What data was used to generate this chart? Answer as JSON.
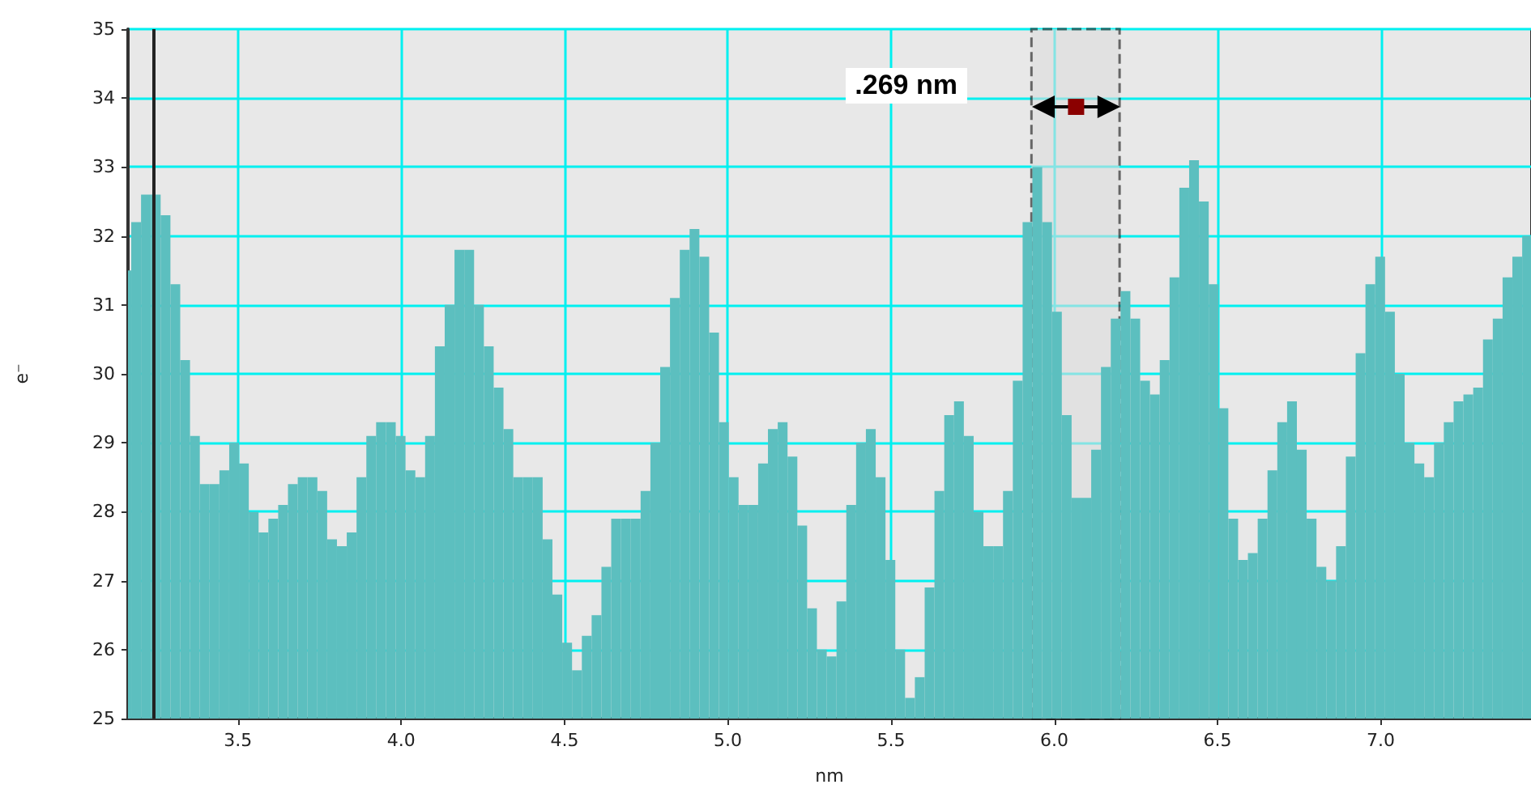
{
  "chart_data": {
    "type": "histogram",
    "xlabel": "nm",
    "ylabel": "e⁻",
    "color": "#5cbfbf",
    "bins": [
      3.163,
      3.173,
      3.203,
      3.233,
      3.263,
      3.293,
      3.323,
      3.353,
      3.383,
      3.413,
      3.443,
      3.473,
      3.503,
      3.533,
      3.563,
      3.593,
      3.623,
      3.653,
      3.683,
      3.713,
      3.743,
      3.773,
      3.803,
      3.833,
      3.863,
      3.893,
      3.923,
      3.953,
      3.983,
      4.013,
      4.043,
      4.073,
      4.103,
      4.133,
      4.163,
      4.193,
      4.223,
      4.253,
      4.283,
      4.313,
      4.343,
      4.373,
      4.403,
      4.433,
      4.463,
      4.493,
      4.523,
      4.553,
      4.583,
      4.613,
      4.643,
      4.673,
      4.703,
      4.733,
      4.763,
      4.793,
      4.823,
      4.853,
      4.883,
      4.913,
      4.943,
      4.973,
      5.003,
      5.033,
      5.063,
      5.093,
      5.123,
      5.153,
      5.183,
      5.213,
      5.243,
      5.273,
      5.303,
      5.333,
      5.363,
      5.393,
      5.423,
      5.453,
      5.483,
      5.513,
      5.543,
      5.573,
      5.603,
      5.633,
      5.663,
      5.693,
      5.723,
      5.753,
      5.783,
      5.813,
      5.843,
      5.873,
      5.903,
      5.933,
      5.963,
      5.993,
      6.023,
      6.053,
      6.083,
      6.113,
      6.143,
      6.173,
      6.203,
      6.233,
      6.263,
      6.293,
      6.323,
      6.353,
      6.383,
      6.413,
      6.443,
      6.473,
      6.503,
      6.533,
      6.563,
      6.593,
      6.623,
      6.653,
      6.683,
      6.713,
      6.743,
      6.773,
      6.803,
      6.833,
      6.863,
      6.893,
      6.923,
      6.953,
      6.983,
      7.013,
      7.043,
      7.073,
      7.103,
      7.133,
      7.163,
      7.193,
      7.223,
      7.253,
      7.283,
      7.313,
      7.343,
      7.373,
      7.403,
      7.433,
      7.46
    ],
    "values": [
      31.5,
      32.2,
      32.6,
      32.6,
      32.3,
      31.3,
      30.2,
      29.1,
      28.4,
      28.4,
      28.6,
      29.0,
      28.7,
      28.0,
      27.7,
      27.9,
      28.1,
      28.4,
      28.5,
      28.5,
      28.3,
      27.6,
      27.5,
      27.7,
      28.5,
      29.1,
      29.3,
      29.3,
      29.1,
      28.6,
      28.5,
      29.1,
      30.4,
      31.0,
      31.8,
      31.8,
      31.0,
      30.4,
      29.8,
      29.2,
      28.5,
      28.5,
      28.5,
      27.6,
      26.8,
      26.1,
      25.7,
      26.2,
      26.5,
      27.2,
      27.9,
      27.9,
      27.9,
      28.3,
      29.0,
      30.1,
      31.1,
      31.8,
      32.1,
      31.7,
      30.6,
      29.3,
      28.5,
      28.1,
      28.1,
      28.7,
      29.2,
      29.3,
      28.8,
      27.8,
      26.6,
      26.0,
      25.9,
      26.7,
      28.1,
      29.0,
      29.2,
      28.5,
      27.3,
      26.0,
      25.3,
      25.6,
      26.9,
      28.3,
      29.4,
      29.6,
      29.1,
      28.0,
      27.5,
      27.5,
      28.3,
      29.9,
      32.2,
      33.0,
      32.2,
      30.9,
      29.4,
      28.2,
      28.2,
      28.9,
      30.1,
      30.8,
      31.2,
      30.8,
      29.9,
      29.7,
      30.2,
      31.4,
      32.7,
      33.1,
      32.5,
      31.3,
      29.5,
      27.9,
      27.3,
      27.4,
      27.9,
      28.6,
      29.3,
      29.6,
      28.9,
      27.9,
      27.2,
      27.0,
      27.5,
      28.8,
      30.3,
      31.3,
      31.7,
      30.9,
      30.0,
      29.0,
      28.7,
      28.5,
      29.0,
      29.3,
      29.6,
      29.7,
      29.8,
      30.5,
      30.8,
      31.4,
      31.7,
      32.0
    ],
    "xlim": [
      3.163,
      7.46
    ],
    "xticks": [
      {
        "value": 3.5,
        "label": "3.5"
      },
      {
        "value": 4,
        "label": "4.0"
      },
      {
        "value": 4.5,
        "label": "4.5"
      },
      {
        "value": 5,
        "label": "5.0"
      },
      {
        "value": 5.5,
        "label": "5.5"
      },
      {
        "value": 6,
        "label": "6.0"
      },
      {
        "value": 6.5,
        "label": "6.5"
      },
      {
        "value": 7,
        "label": "7.0"
      }
    ],
    "ylim": [
      25,
      35
    ],
    "yticks": [
      25,
      26,
      27,
      28,
      29,
      30,
      31,
      32,
      33,
      34,
      35
    ],
    "grid": true,
    "ref_lines": [
      {
        "axis": "x",
        "value": 3.24,
        "color": "#222222"
      }
    ],
    "bands": [
      {
        "axis": "x",
        "from": 5.93,
        "to": 6.2,
        "color": "#dcdcdc"
      }
    ],
    "annotations": [
      ".269 nm"
    ]
  }
}
